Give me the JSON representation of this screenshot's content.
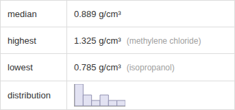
{
  "table": {
    "rows": [
      {
        "label": "median",
        "value": "0.889 g/cm³"
      },
      {
        "label": "highest",
        "value": "1.325 g/cm³",
        "note": "(methylene chloride)"
      },
      {
        "label": "lowest",
        "value": "0.785 g/cm³",
        "note": "(isopropanol)"
      },
      {
        "label": "distribution"
      }
    ]
  },
  "chart_data": {
    "type": "histogram",
    "bins": [
      0.75,
      0.85,
      0.95,
      1.05,
      1.15,
      1.25,
      1.35
    ],
    "counts": [
      4,
      2,
      1,
      2,
      1,
      1
    ],
    "color": "#e2e2f2",
    "xlim": [
      0.75,
      1.35
    ],
    "ylim": [
      0,
      4
    ],
    "tick_labels": false,
    "grid": false
  }
}
